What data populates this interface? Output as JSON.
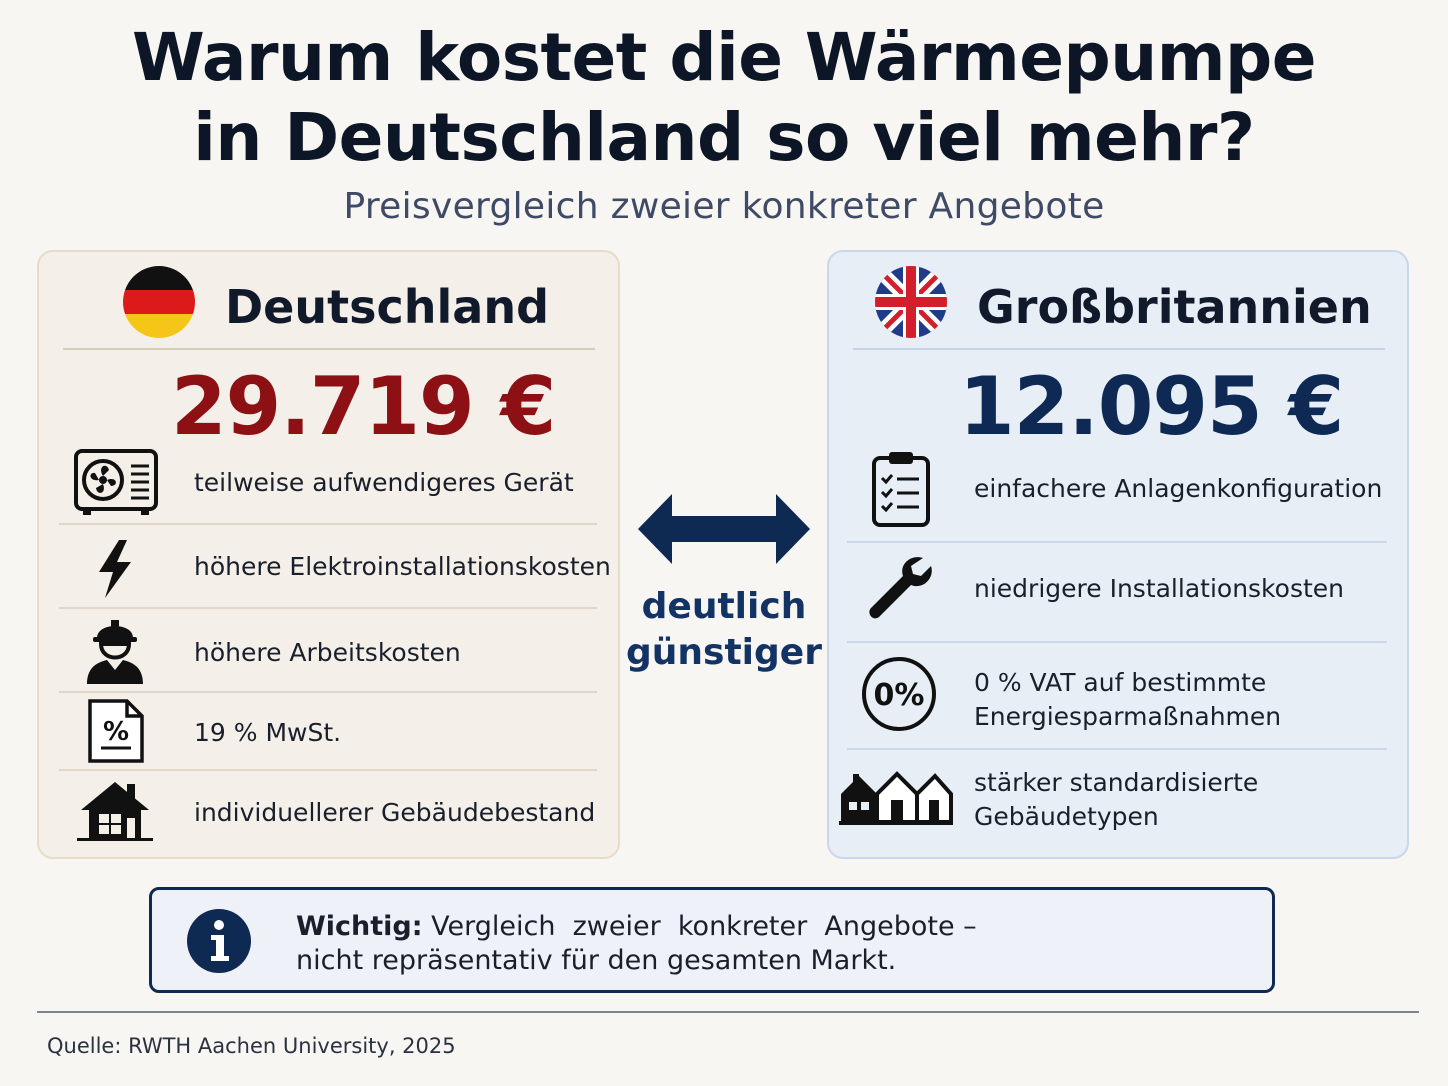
{
  "title": {
    "line1": "Warum kostet die Wärmepumpe",
    "line2": "in Deutschland so viel mehr?",
    "subtitle": "Preisvergleich zweier konkreter Angebote"
  },
  "germany": {
    "flag_icon": "germany-flag-icon",
    "name": "Deutschland",
    "price": "29.719 €",
    "price_color": "#8c1014",
    "items": [
      {
        "icon": "heat-pump-unit-icon",
        "text": "teilweise aufwendigeres Gerät"
      },
      {
        "icon": "lightning-bolt-icon",
        "text": "höhere Elektroinstallationskosten"
      },
      {
        "icon": "construction-worker-icon",
        "text": "höhere Arbeitskosten"
      },
      {
        "icon": "percent-document-icon",
        "text": "19 % MwSt."
      },
      {
        "icon": "house-icon",
        "text": "individuellerer Gebäudebestand"
      }
    ]
  },
  "uk": {
    "flag_icon": "union-jack-flag-icon",
    "name": "Großbritannien",
    "price": "12.095 €",
    "price_color": "#0e2a54",
    "items": [
      {
        "icon": "clipboard-checklist-icon",
        "text": "einfachere Anlagenkonfiguration"
      },
      {
        "icon": "wrench-icon",
        "text": "niedrigere Installationskosten"
      },
      {
        "icon": "zero-percent-icon",
        "icon_text": "0%",
        "line1": "0 % VAT auf bestimmte",
        "line2": "Energiesparmaßnahmen"
      },
      {
        "icon": "row-houses-icon",
        "line1": "stärker standardisierte",
        "line2": "Gebäudetypen"
      }
    ]
  },
  "comparison": {
    "arrow_icon": "double-arrow-icon",
    "line1": "deutlich",
    "line2": "günstiger"
  },
  "note": {
    "icon": "info-icon",
    "bold": "Wichtig:",
    "line1_rest": " Vergleich  zweier  konkreter  Angebote –",
    "line2": "nicht repräsentativ für den gesamten Markt."
  },
  "source": "Quelle: RWTH Aachen University, 2025",
  "colors": {
    "navy": "#0f2a52",
    "de_red": "#8c1014",
    "de_panel_bg": "#f4efe8",
    "uk_panel_bg": "#e8eef6"
  }
}
